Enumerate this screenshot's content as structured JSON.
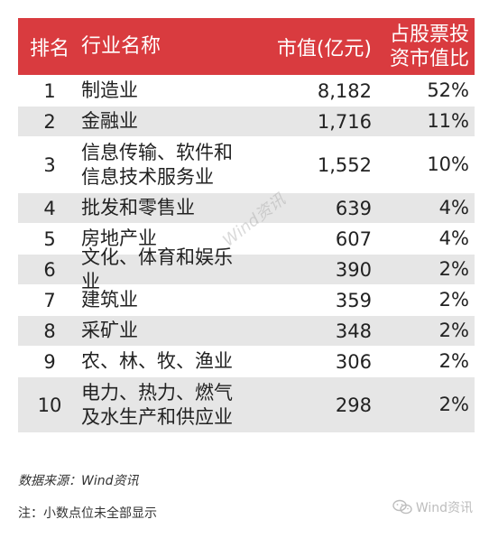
{
  "table": {
    "headers": {
      "rank": "排名",
      "industry": "行业名称",
      "market_value": "市值(亿元)",
      "share": "占股票投\n资市值比"
    },
    "rows": [
      {
        "rank": "1",
        "industry": "制造业",
        "market_value": "8,182",
        "share": "52%"
      },
      {
        "rank": "2",
        "industry": "金融业",
        "market_value": "1,716",
        "share": "11%"
      },
      {
        "rank": "3",
        "industry": "信息传输、软件和\n信息技术服务业",
        "market_value": "1,552",
        "share": "10%"
      },
      {
        "rank": "4",
        "industry": "批发和零售业",
        "market_value": "639",
        "share": "4%"
      },
      {
        "rank": "5",
        "industry": "房地产业",
        "market_value": "607",
        "share": "4%"
      },
      {
        "rank": "6",
        "industry": "文化、体育和娱乐业",
        "market_value": "390",
        "share": "2%"
      },
      {
        "rank": "7",
        "industry": "建筑业",
        "market_value": "359",
        "share": "2%"
      },
      {
        "rank": "8",
        "industry": "采矿业",
        "market_value": "348",
        "share": "2%"
      },
      {
        "rank": "9",
        "industry": "农、林、牧、渔业",
        "market_value": "306",
        "share": "2%"
      },
      {
        "rank": "10",
        "industry": "电力、热力、燃气\n及水生产和供应业",
        "market_value": "298",
        "share": "2%"
      }
    ]
  },
  "footer": {
    "source": "数据来源：Wind资讯",
    "note": "注：小数点位未全部显示",
    "brand": "Wind资讯",
    "watermark": "Wind资讯"
  },
  "colors": {
    "header_bg": "#d93b3f",
    "stripe": "#e6e6e6"
  },
  "icons": {
    "brand": "wechat-icon"
  }
}
